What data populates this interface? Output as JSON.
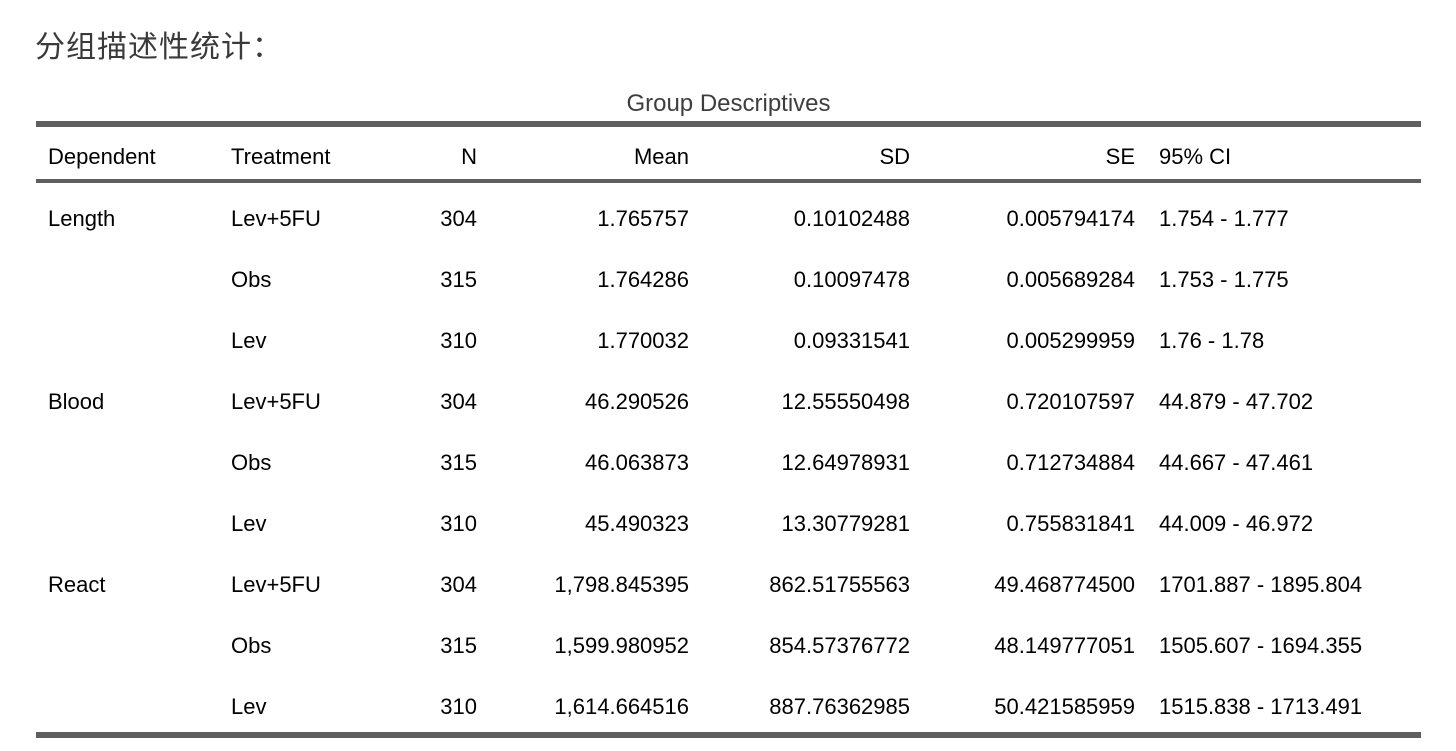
{
  "page_title": "分组描述性统计：",
  "table": {
    "title": "Group Descriptives",
    "columns": [
      {
        "label": "Dependent",
        "align": "left"
      },
      {
        "label": "Treatment",
        "align": "left"
      },
      {
        "label": "N",
        "align": "right"
      },
      {
        "label": "Mean",
        "align": "right"
      },
      {
        "label": "SD",
        "align": "right"
      },
      {
        "label": "SE",
        "align": "right"
      },
      {
        "label": "95% CI",
        "align": "left"
      }
    ],
    "rows": [
      [
        "Length",
        "Lev+5FU",
        "304",
        "1.765757",
        "0.10102488",
        "0.005794174",
        "1.754 - 1.777"
      ],
      [
        "",
        "Obs",
        "315",
        "1.764286",
        "0.10097478",
        "0.005689284",
        "1.753 - 1.775"
      ],
      [
        "",
        "Lev",
        "310",
        "1.770032",
        "0.09331541",
        "0.005299959",
        "1.76 - 1.78"
      ],
      [
        "Blood",
        "Lev+5FU",
        "304",
        "46.290526",
        "12.55550498",
        "0.720107597",
        "44.879 - 47.702"
      ],
      [
        "",
        "Obs",
        "315",
        "46.063873",
        "12.64978931",
        "0.712734884",
        "44.667 - 47.461"
      ],
      [
        "",
        "Lev",
        "310",
        "45.490323",
        "13.30779281",
        "0.755831841",
        "44.009 - 46.972"
      ],
      [
        "React",
        "Lev+5FU",
        "304",
        "1,798.845395",
        "862.51755563",
        "49.468774500",
        "1701.887 - 1895.804"
      ],
      [
        "",
        "Obs",
        "315",
        "1,599.980952",
        "854.57376772",
        "48.149777051",
        "1505.607 - 1694.355"
      ],
      [
        "",
        "Lev",
        "310",
        "1,614.664516",
        "887.76362985",
        "50.421585959",
        "1515.838 - 1713.491"
      ]
    ]
  },
  "colors": {
    "heading_text": "#3a3a3a",
    "table_title_text": "#3e3e3e",
    "table_border": "#5f5f5f",
    "data_text": "#000000",
    "background": "#ffffff"
  }
}
